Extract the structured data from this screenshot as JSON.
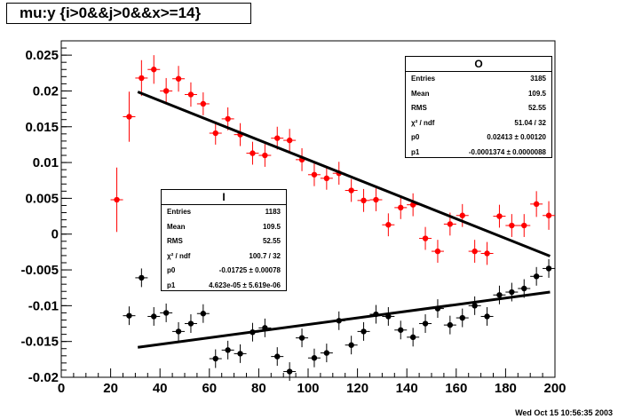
{
  "title": "mu:y {i>0&&j>0&&x>=14}",
  "footer": "Wed Oct 15 10:56:35 2003",
  "stats_O": {
    "name": "O",
    "rows": [
      {
        "label": "Entries",
        "value": "3185"
      },
      {
        "label": "Mean",
        "value": "109.5"
      },
      {
        "label": "RMS",
        "value": "52.55"
      },
      {
        "label": "χ² / ndf",
        "value": "51.04 / 32"
      },
      {
        "label": "p0",
        "value": "0.02413 ± 0.00120"
      },
      {
        "label": "p1",
        "value": "-0.0001374 ± 0.0000088"
      }
    ]
  },
  "stats_I": {
    "name": "I",
    "rows": [
      {
        "label": "Entries",
        "value": "1183"
      },
      {
        "label": "Mean",
        "value": "109.5"
      },
      {
        "label": "RMS",
        "value": "52.55"
      },
      {
        "label": "χ² / ndf",
        "value": "100.7 / 32"
      },
      {
        "label": "p0",
        "value": "-0.01725 ± 0.00078"
      },
      {
        "label": "p1",
        "value": "4.623e-05 ± 5.619e-06"
      }
    ]
  },
  "chart_data": {
    "type": "scatter",
    "title": "mu:y {i>0&&j>0&&x>=14}",
    "xlim": [
      0,
      200
    ],
    "ylim": [
      -0.02,
      0.027
    ],
    "xticks": [
      0,
      20,
      40,
      60,
      80,
      100,
      120,
      140,
      160,
      180,
      200
    ],
    "yticks": [
      -0.02,
      -0.015,
      -0.01,
      -0.005,
      0,
      0.005,
      0.01,
      0.015,
      0.02,
      0.025
    ],
    "ytick_labels": [
      "-0.02",
      "-0.015",
      "-0.01",
      "-0.005",
      "0",
      "0.005",
      "0.01",
      "0.015",
      "0.02",
      "0.025"
    ],
    "xtick_labels": [
      "0",
      "20",
      "40",
      "60",
      "80",
      "100",
      "120",
      "140",
      "160",
      "180",
      "200"
    ],
    "grid": false,
    "series": [
      {
        "name": "O",
        "color": "#ff0000",
        "x": [
          22.5,
          27.5,
          32.5,
          37.5,
          42.5,
          47.5,
          52.5,
          57.5,
          62.5,
          67.5,
          72.5,
          77.5,
          82.5,
          87.5,
          92.5,
          97.5,
          102.5,
          107.5,
          112.5,
          117.5,
          122.5,
          127.5,
          132.5,
          137.5,
          142.5,
          147.5,
          152.5,
          157.5,
          162.5,
          167.5,
          172.5,
          177.5,
          182.5,
          187.5,
          192.5,
          197.5
        ],
        "y": [
          0.0048,
          0.0164,
          0.0218,
          0.023,
          0.02,
          0.0217,
          0.0195,
          0.0182,
          0.0141,
          0.0161,
          0.0139,
          0.0113,
          0.011,
          0.0134,
          0.0131,
          0.0104,
          0.0083,
          0.0078,
          0.0085,
          0.0061,
          0.0047,
          0.0048,
          0.0013,
          0.0037,
          0.0041,
          -0.0006,
          -0.0024,
          0.0014,
          0.0026,
          -0.0024,
          -0.0027,
          0.0025,
          0.0012,
          0.0012,
          0.0042,
          0.0026
        ],
        "err": [
          0.0045,
          0.0035,
          0.0025,
          0.002,
          0.0018,
          0.0018,
          0.0017,
          0.0016,
          0.0016,
          0.0016,
          0.0016,
          0.0016,
          0.0016,
          0.0016,
          0.0016,
          0.0016,
          0.0016,
          0.0016,
          0.0016,
          0.0016,
          0.0016,
          0.0016,
          0.0016,
          0.0016,
          0.0016,
          0.0016,
          0.0016,
          0.0016,
          0.0016,
          0.0016,
          0.0016,
          0.0016,
          0.0016,
          0.0016,
          0.0018,
          0.002
        ],
        "fit": {
          "p0": 0.02413,
          "p1": -0.0001374,
          "xmin": 31,
          "xmax": 198
        }
      },
      {
        "name": "I",
        "color": "#000000",
        "x": [
          27.5,
          32.5,
          37.5,
          42.5,
          47.5,
          52.5,
          57.5,
          62.5,
          67.5,
          72.5,
          77.5,
          82.5,
          87.5,
          92.5,
          97.5,
          102.5,
          107.5,
          112.5,
          117.5,
          122.5,
          127.5,
          132.5,
          137.5,
          142.5,
          147.5,
          152.5,
          157.5,
          162.5,
          167.5,
          172.5,
          177.5,
          182.5,
          187.5,
          192.5,
          197.5
        ],
        "y": [
          -0.0114,
          -0.0061,
          -0.0115,
          -0.011,
          -0.0136,
          -0.0125,
          -0.0111,
          -0.0174,
          -0.0162,
          -0.0167,
          -0.0137,
          -0.0131,
          -0.0171,
          -0.0192,
          -0.0145,
          -0.0173,
          -0.0166,
          -0.0121,
          -0.0155,
          -0.0136,
          -0.0112,
          -0.0115,
          -0.0134,
          -0.0144,
          -0.0125,
          -0.0104,
          -0.0127,
          -0.0117,
          -0.01,
          -0.0115,
          -0.0085,
          -0.0081,
          -0.0076,
          -0.0059,
          -0.0048
        ],
        "err": [
          0.0013,
          0.0013,
          0.0013,
          0.0013,
          0.0013,
          0.0013,
          0.0013,
          0.0013,
          0.0013,
          0.0013,
          0.0013,
          0.0013,
          0.0013,
          0.0013,
          0.0013,
          0.0013,
          0.0013,
          0.0013,
          0.0013,
          0.0013,
          0.0013,
          0.0013,
          0.0013,
          0.0013,
          0.0013,
          0.0013,
          0.0013,
          0.0013,
          0.0013,
          0.0013,
          0.0013,
          0.0013,
          0.0013,
          0.0013,
          0.0013
        ],
        "fit": {
          "p0": -0.01725,
          "p1": 4.623e-05,
          "xmin": 31,
          "xmax": 198
        }
      }
    ]
  }
}
